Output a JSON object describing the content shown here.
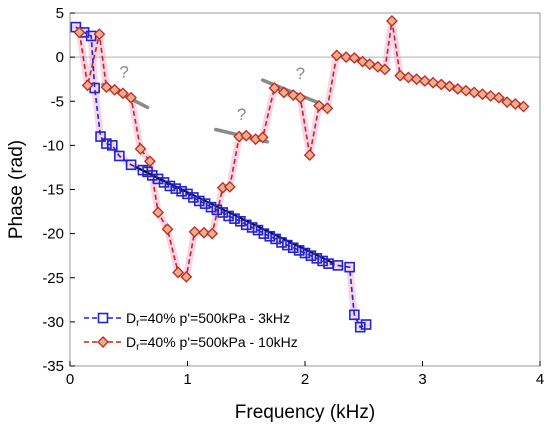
{
  "chart_data": {
    "type": "line",
    "xlabel": "Frequency (kHz)",
    "ylabel": "Phase (rad)",
    "xlim": [
      0,
      4
    ],
    "ylim": [
      -35,
      5
    ],
    "xticks": [
      "0",
      "1",
      "2",
      "3",
      "4"
    ],
    "yticks": [
      "5",
      "0",
      "-5",
      "-10",
      "-15",
      "-20",
      "-25",
      "-30",
      "-35"
    ],
    "grid": false,
    "zero_line": true,
    "legend_position": "bottom-left",
    "series": [
      {
        "legend_main": "D",
        "legend_sub": "r",
        "legend_rest": "=40% p'=500kPa - 3kHz",
        "color": "#1f24cc",
        "marker": "square",
        "points": [
          [
            0.05,
            3.4
          ],
          [
            0.12,
            2.8
          ],
          [
            0.18,
            2.4
          ],
          [
            0.21,
            -3.5
          ],
          [
            0.26,
            -9.0
          ],
          [
            0.31,
            -9.8
          ],
          [
            0.36,
            -10.0
          ],
          [
            0.42,
            -11.2
          ],
          [
            0.52,
            -12.2
          ],
          [
            0.62,
            -12.8
          ],
          [
            0.66,
            -13.0
          ],
          [
            0.7,
            -13.4
          ],
          [
            0.75,
            -13.8
          ],
          [
            0.8,
            -14.2
          ],
          [
            0.85,
            -14.6
          ],
          [
            0.9,
            -14.9
          ],
          [
            0.95,
            -15.2
          ],
          [
            1.0,
            -15.5
          ],
          [
            1.05,
            -15.9
          ],
          [
            1.1,
            -16.3
          ],
          [
            1.15,
            -16.6
          ],
          [
            1.2,
            -17.0
          ],
          [
            1.25,
            -17.3
          ],
          [
            1.3,
            -17.6
          ],
          [
            1.35,
            -18.0
          ],
          [
            1.4,
            -18.3
          ],
          [
            1.45,
            -18.6
          ],
          [
            1.5,
            -19.0
          ],
          [
            1.55,
            -19.3
          ],
          [
            1.6,
            -19.6
          ],
          [
            1.65,
            -20.0
          ],
          [
            1.7,
            -20.3
          ],
          [
            1.75,
            -20.6
          ],
          [
            1.8,
            -21.0
          ],
          [
            1.85,
            -21.3
          ],
          [
            1.9,
            -21.6
          ],
          [
            1.95,
            -21.9
          ],
          [
            2.0,
            -22.2
          ],
          [
            2.05,
            -22.5
          ],
          [
            2.1,
            -22.8
          ],
          [
            2.15,
            -23.1
          ],
          [
            2.2,
            -23.4
          ],
          [
            2.28,
            -23.6
          ],
          [
            2.38,
            -23.8
          ],
          [
            2.42,
            -29.2
          ],
          [
            2.47,
            -30.6
          ],
          [
            2.52,
            -30.3
          ]
        ],
        "fit_line": [
          [
            0.55,
            -12.4
          ],
          [
            2.25,
            -23.4
          ]
        ]
      },
      {
        "legend_main": "D",
        "legend_sub": "r",
        "legend_rest": "=40% p'=500kPa - 10kHz",
        "color": "#c0281e",
        "marker": "diamond",
        "points": [
          [
            0.08,
            2.8
          ],
          [
            0.15,
            -3.2
          ],
          [
            0.25,
            2.6
          ],
          [
            0.31,
            -3.4
          ],
          [
            0.38,
            -3.7
          ],
          [
            0.45,
            -4.1
          ],
          [
            0.52,
            -4.6
          ],
          [
            0.6,
            -10.4
          ],
          [
            0.68,
            -11.8
          ],
          [
            0.75,
            -17.6
          ],
          [
            0.83,
            -19.5
          ],
          [
            0.92,
            -24.4
          ],
          [
            0.99,
            -24.9
          ],
          [
            1.06,
            -19.8
          ],
          [
            1.14,
            -19.9
          ],
          [
            1.21,
            -20.0
          ],
          [
            1.3,
            -14.8
          ],
          [
            1.36,
            -14.7
          ],
          [
            1.44,
            -9.0
          ],
          [
            1.5,
            -8.9
          ],
          [
            1.58,
            -9.3
          ],
          [
            1.64,
            -9.1
          ],
          [
            1.74,
            -3.5
          ],
          [
            1.82,
            -4.0
          ],
          [
            1.9,
            -4.3
          ],
          [
            1.96,
            -4.6
          ],
          [
            2.04,
            -11.1
          ],
          [
            2.12,
            -5.5
          ],
          [
            2.19,
            -5.8
          ],
          [
            2.27,
            0.2
          ],
          [
            2.35,
            0.0
          ],
          [
            2.42,
            -0.1
          ],
          [
            2.49,
            -0.5
          ],
          [
            2.55,
            -0.8
          ],
          [
            2.62,
            -1.1
          ],
          [
            2.68,
            -1.4
          ],
          [
            2.74,
            4.1
          ],
          [
            2.81,
            -2.1
          ],
          [
            2.88,
            -2.3
          ],
          [
            2.95,
            -2.5
          ],
          [
            3.02,
            -2.7
          ],
          [
            3.09,
            -2.9
          ],
          [
            3.16,
            -3.1
          ],
          [
            3.23,
            -3.3
          ],
          [
            3.3,
            -3.6
          ],
          [
            3.37,
            -3.8
          ],
          [
            3.44,
            -4.0
          ],
          [
            3.51,
            -4.2
          ],
          [
            3.58,
            -4.4
          ],
          [
            3.65,
            -4.6
          ],
          [
            3.72,
            -5.1
          ],
          [
            3.79,
            -5.3
          ],
          [
            3.86,
            -5.6
          ]
        ]
      }
    ],
    "annotations": [
      {
        "text": "?",
        "at": [
          0.46,
          -2.3
        ],
        "segment": [
          [
            0.28,
            -3.1
          ],
          [
            0.66,
            -5.7
          ]
        ]
      },
      {
        "text": "?",
        "at": [
          1.46,
          -7.1
        ],
        "segment": [
          [
            1.24,
            -8.2
          ],
          [
            1.68,
            -9.6
          ]
        ]
      },
      {
        "text": "?",
        "at": [
          1.96,
          -2.5
        ],
        "segment": [
          [
            1.64,
            -2.6
          ],
          [
            2.1,
            -5.1
          ]
        ]
      }
    ],
    "styles": {
      "fit_color": "#000000",
      "annotation_color": "#8a8a8a",
      "highlight_color": "#f7cde4",
      "zero_line_color": "#b3b3b3",
      "frame_color": "#9a9a9a"
    }
  }
}
